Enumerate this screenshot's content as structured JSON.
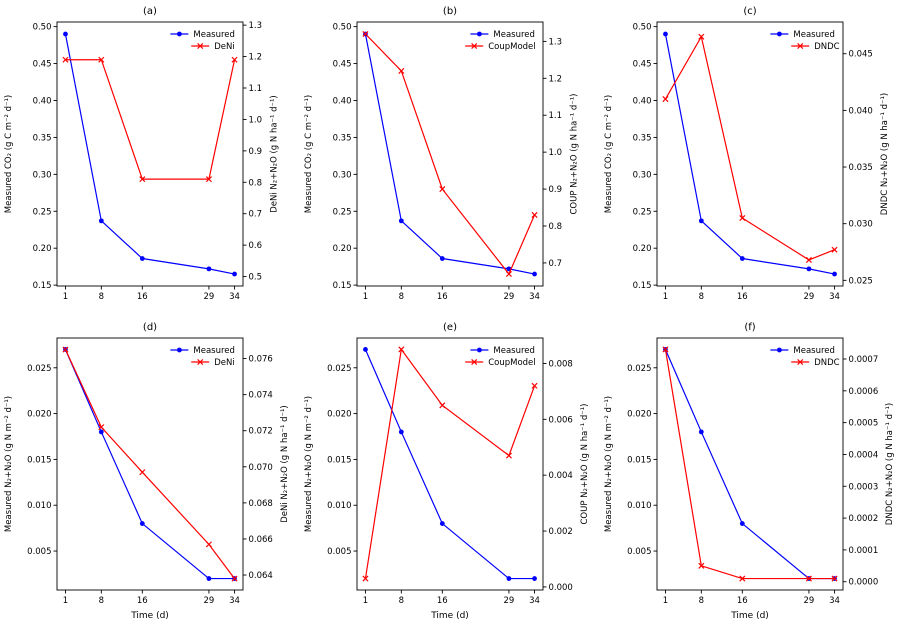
{
  "colors": {
    "measured": "#0000ff",
    "model": "#ff0000",
    "axis": "#000000",
    "background": "#ffffff"
  },
  "chart_data": [
    {
      "id": "a",
      "type": "line",
      "title": "(a)",
      "x": [
        1,
        8,
        16,
        29,
        34
      ],
      "x_ticks": [
        1,
        8,
        16,
        29,
        34
      ],
      "x_tick_labels": [
        "1",
        "8",
        "16",
        "29",
        "34"
      ],
      "xlim": [
        -0.65,
        35.65
      ],
      "left": {
        "label": "Measured CO₂ (g C m⁻² d⁻¹)",
        "lim": [
          0.1488,
          0.5063
        ],
        "ticks": [
          0.15,
          0.2,
          0.25,
          0.3,
          0.35,
          0.4,
          0.45,
          0.5
        ],
        "tick_labels": [
          "0.15",
          "0.20",
          "0.25",
          "0.30",
          "0.35",
          "0.40",
          "0.45",
          "0.50"
        ]
      },
      "right": {
        "label": "DeNi N₂+N₂O (g N ha⁻¹ d⁻¹)",
        "lim": [
          0.47,
          1.31
        ],
        "ticks": [
          0.5,
          0.6,
          0.7,
          0.8,
          0.9,
          1.0,
          1.1,
          1.2,
          1.3
        ],
        "tick_labels": [
          "0.5",
          "0.6",
          "0.7",
          "0.8",
          "0.9",
          "1.0",
          "1.1",
          "1.2",
          "1.3"
        ]
      },
      "series": [
        {
          "name": "Measured",
          "axis": "left",
          "color": "#0000ff",
          "marker": "circle",
          "values": [
            0.49,
            0.237,
            0.186,
            0.172,
            0.165
          ]
        },
        {
          "name": "DeNi",
          "axis": "right",
          "color": "#ff0000",
          "marker": "x",
          "values": [
            1.19,
            1.19,
            0.81,
            0.81,
            1.19
          ]
        }
      ]
    },
    {
      "id": "b",
      "type": "line",
      "title": "(b)",
      "x": [
        1,
        8,
        16,
        29,
        34
      ],
      "x_ticks": [
        1,
        8,
        16,
        29,
        34
      ],
      "x_tick_labels": [
        "1",
        "8",
        "16",
        "29",
        "34"
      ],
      "xlim": [
        -0.65,
        35.65
      ],
      "left": {
        "label": "Measured CO₂ (g C m⁻² d⁻¹)",
        "lim": [
          0.1488,
          0.5063
        ],
        "ticks": [
          0.15,
          0.2,
          0.25,
          0.3,
          0.35,
          0.4,
          0.45,
          0.5
        ],
        "tick_labels": [
          "0.15",
          "0.20",
          "0.25",
          "0.30",
          "0.35",
          "0.40",
          "0.45",
          "0.50"
        ]
      },
      "right": {
        "label": "COUP N₂+N₂O (g N ha⁻¹ d⁻¹)",
        "lim": [
          0.6375,
          1.3525
        ],
        "ticks": [
          0.7,
          0.8,
          0.9,
          1.0,
          1.1,
          1.2,
          1.3
        ],
        "tick_labels": [
          "0.7",
          "0.8",
          "0.9",
          "1.0",
          "1.1",
          "1.2",
          "1.3"
        ]
      },
      "series": [
        {
          "name": "Measured",
          "axis": "left",
          "color": "#0000ff",
          "marker": "circle",
          "values": [
            0.49,
            0.237,
            0.186,
            0.172,
            0.165
          ]
        },
        {
          "name": "CoupModel",
          "axis": "right",
          "color": "#ff0000",
          "marker": "x",
          "values": [
            1.32,
            1.22,
            0.9,
            0.67,
            0.83
          ]
        }
      ]
    },
    {
      "id": "c",
      "type": "line",
      "title": "(c)",
      "x": [
        1,
        8,
        16,
        29,
        34
      ],
      "x_ticks": [
        1,
        8,
        16,
        29,
        34
      ],
      "x_tick_labels": [
        "1",
        "8",
        "16",
        "29",
        "34"
      ],
      "xlim": [
        -0.65,
        35.65
      ],
      "left": {
        "label": "Measured CO₂ (g C m⁻² d⁻¹)",
        "lim": [
          0.1488,
          0.5063
        ],
        "ticks": [
          0.15,
          0.2,
          0.25,
          0.3,
          0.35,
          0.4,
          0.45,
          0.5
        ],
        "tick_labels": [
          "0.15",
          "0.20",
          "0.25",
          "0.30",
          "0.35",
          "0.40",
          "0.45",
          "0.50"
        ]
      },
      "right": {
        "label": "DNDC N₂+N₂O (g N ha⁻¹ d⁻¹)",
        "lim": [
          0.0245,
          0.0478
        ],
        "ticks": [
          0.025,
          0.03,
          0.035,
          0.04,
          0.045
        ],
        "tick_labels": [
          "0.025",
          "0.030",
          "0.035",
          "0.040",
          "0.045"
        ]
      },
      "series": [
        {
          "name": "Measured",
          "axis": "left",
          "color": "#0000ff",
          "marker": "circle",
          "values": [
            0.49,
            0.237,
            0.186,
            0.172,
            0.165
          ]
        },
        {
          "name": "DNDC",
          "axis": "right",
          "color": "#ff0000",
          "marker": "x",
          "values": [
            0.041,
            0.0465,
            0.0305,
            0.0268,
            0.0277
          ]
        }
      ]
    },
    {
      "id": "d",
      "type": "line",
      "title": "(d)",
      "x": [
        1,
        8,
        16,
        29,
        34
      ],
      "x_ticks": [
        1,
        8,
        16,
        29,
        34
      ],
      "x_tick_labels": [
        "1",
        "8",
        "16",
        "29",
        "34"
      ],
      "xlim": [
        -0.65,
        35.65
      ],
      "xlabel": "Time (d)",
      "left": {
        "label": "Measured N₂+N₂O (g N m⁻² d⁻¹)",
        "lim": [
          0.00075,
          0.02825
        ],
        "ticks": [
          0.005,
          0.01,
          0.015,
          0.02,
          0.025
        ],
        "tick_labels": [
          "0.005",
          "0.010",
          "0.015",
          "0.020",
          "0.025"
        ]
      },
      "right": {
        "label": "DeNi N₂+N₂O (g N ha⁻¹ d⁻¹)",
        "lim": [
          0.06317,
          0.07714
        ],
        "ticks": [
          0.064,
          0.066,
          0.068,
          0.07,
          0.072,
          0.074,
          0.076
        ],
        "tick_labels": [
          "0.064",
          "0.066",
          "0.068",
          "0.070",
          "0.072",
          "0.074",
          "0.076"
        ]
      },
      "series": [
        {
          "name": "Measured",
          "axis": "left",
          "color": "#0000ff",
          "marker": "circle",
          "values": [
            0.027,
            0.018,
            0.008,
            0.002,
            0.002
          ]
        },
        {
          "name": "DeNi",
          "axis": "right",
          "color": "#ff0000",
          "marker": "x",
          "values": [
            0.0765,
            0.0722,
            0.0697,
            0.0657,
            0.0638
          ]
        }
      ]
    },
    {
      "id": "e",
      "type": "line",
      "title": "(e)",
      "x": [
        1,
        8,
        16,
        29,
        34
      ],
      "x_ticks": [
        1,
        8,
        16,
        29,
        34
      ],
      "x_tick_labels": [
        "1",
        "8",
        "16",
        "29",
        "34"
      ],
      "xlim": [
        -0.65,
        35.65
      ],
      "xlabel": "Time (d)",
      "left": {
        "label": "Measured N₂+N₂O (g N m⁻² d⁻¹)",
        "lim": [
          0.00075,
          0.02825
        ],
        "ticks": [
          0.005,
          0.01,
          0.015,
          0.02,
          0.025
        ],
        "tick_labels": [
          "0.005",
          "0.010",
          "0.015",
          "0.020",
          "0.025"
        ]
      },
      "right": {
        "label": "COUP N₂+N₂O (g N ha⁻¹ d⁻¹)",
        "lim": [
          -0.00011,
          0.00891
        ],
        "ticks": [
          0.0,
          0.002,
          0.004,
          0.006,
          0.008
        ],
        "tick_labels": [
          "0.000",
          "0.002",
          "0.004",
          "0.006",
          "0.008"
        ]
      },
      "series": [
        {
          "name": "Measured",
          "axis": "left",
          "color": "#0000ff",
          "marker": "circle",
          "values": [
            0.027,
            0.018,
            0.008,
            0.002,
            0.002
          ]
        },
        {
          "name": "CoupModel",
          "axis": "right",
          "color": "#ff0000",
          "marker": "x",
          "values": [
            0.0003,
            0.0085,
            0.0065,
            0.0047,
            0.0072
          ]
        }
      ]
    },
    {
      "id": "f",
      "type": "line",
      "title": "(f)",
      "x": [
        1,
        8,
        16,
        29,
        34
      ],
      "x_ticks": [
        1,
        8,
        16,
        29,
        34
      ],
      "x_tick_labels": [
        "1",
        "8",
        "16",
        "29",
        "34"
      ],
      "xlim": [
        -0.65,
        35.65
      ],
      "xlabel": "Time (d)",
      "left": {
        "label": "Measured N₂+N₂O (g N m⁻² d⁻¹)",
        "lim": [
          0.00075,
          0.02825
        ],
        "ticks": [
          0.005,
          0.01,
          0.015,
          0.02,
          0.025
        ],
        "tick_labels": [
          "0.005",
          "0.010",
          "0.015",
          "0.020",
          "0.025"
        ]
      },
      "right": {
        "label": "DNDC N₂+N₂O (g N ha⁻¹ d⁻¹)",
        "lim": [
          -2.6e-05,
          0.000766
        ],
        "ticks": [
          0.0,
          0.0001,
          0.0002,
          0.0003,
          0.0004,
          0.0005,
          0.0006,
          0.0007
        ],
        "tick_labels": [
          "0.0000",
          "0.0001",
          "0.0002",
          "0.0003",
          "0.0004",
          "0.0005",
          "0.0006",
          "0.0007"
        ]
      },
      "series": [
        {
          "name": "Measured",
          "axis": "left",
          "color": "#0000ff",
          "marker": "circle",
          "values": [
            0.027,
            0.018,
            0.008,
            0.002,
            0.002
          ]
        },
        {
          "name": "DNDC",
          "axis": "right",
          "color": "#ff0000",
          "marker": "x",
          "values": [
            0.00073,
            5e-05,
            1e-05,
            1e-05,
            1e-05
          ]
        }
      ]
    }
  ]
}
